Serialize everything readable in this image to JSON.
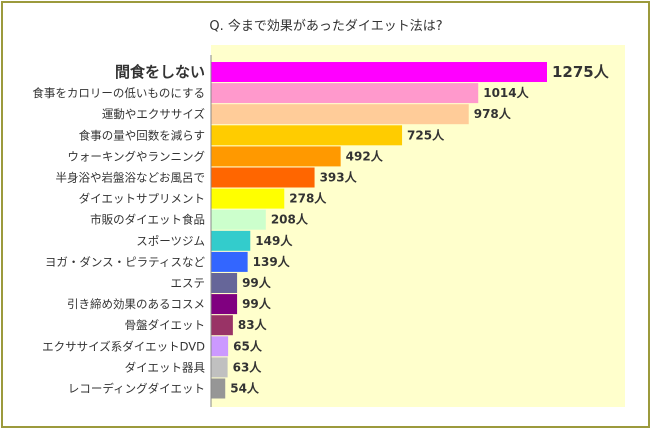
{
  "chart_data": {
    "type": "bar",
    "orientation": "horizontal",
    "title": "Q. 今まで効果があったダイエット法は?",
    "unit": "人",
    "categories": [
      "間食をしない",
      "食事をカロリーの低いものにする",
      "運動やエクササイズ",
      "食事の量や回数を減らす",
      "ウォーキングやランニング",
      "半身浴や岩盤浴などお風呂で",
      "ダイエットサプリメント",
      "市販のダイエット食品",
      "スポーツジム",
      "ヨガ・ダンス・ピラティスなど",
      "エステ",
      "引き締め効果のあるコスメ",
      "骨盤ダイエット",
      "エクササイズ系ダイエットDVD",
      "ダイエット器具",
      "レコーディングダイエット"
    ],
    "values": [
      1275,
      1014,
      978,
      725,
      492,
      393,
      278,
      208,
      149,
      139,
      99,
      99,
      83,
      65,
      63,
      54
    ],
    "value_labels": [
      "1275人",
      "1014人",
      "978人",
      "725人",
      "492人",
      "393人",
      "278人",
      "208人",
      "149人",
      "139人",
      "99人",
      "99人",
      "83人",
      "65人",
      "63人",
      "54人"
    ],
    "colors": [
      "#ff00ff",
      "#ff99cc",
      "#ffcc99",
      "#ffcc00",
      "#ff9900",
      "#ff6600",
      "#ffff00",
      "#ccffcc",
      "#33cccc",
      "#3366ff",
      "#666699",
      "#800080",
      "#993366",
      "#cc99ff",
      "#c0c0c0",
      "#969696"
    ],
    "xlim": [
      0,
      1275
    ],
    "grid": false,
    "plot_background": "#ffffcc",
    "border_color": "#9c9a3c"
  }
}
